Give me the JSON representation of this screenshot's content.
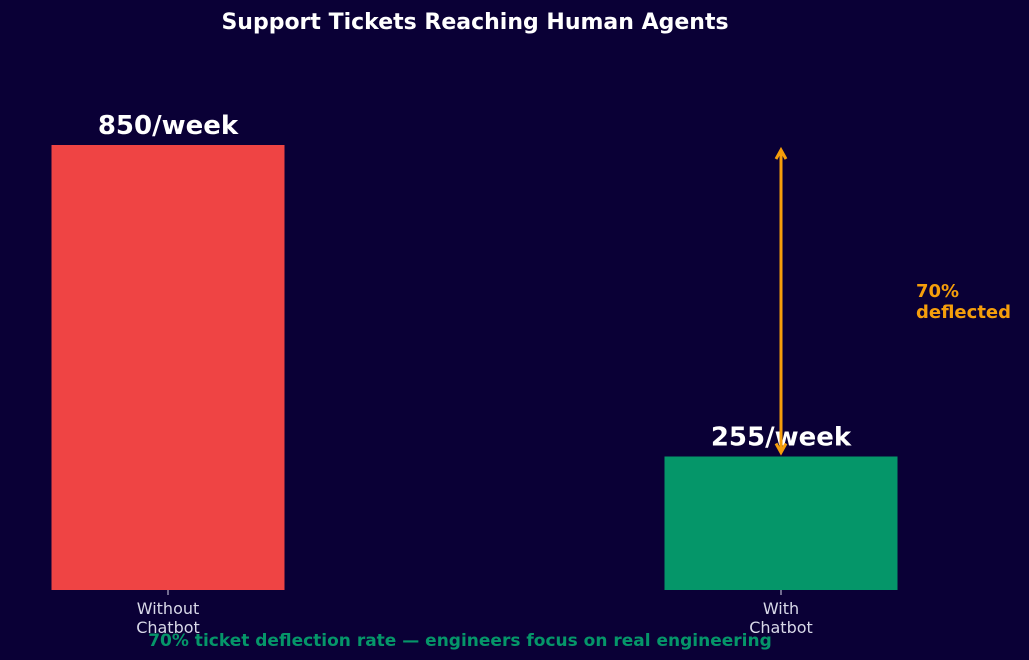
{
  "chart_data": {
    "type": "bar",
    "title": "Support Tickets Reaching Human Agents",
    "categories": [
      "Without\nChatbot",
      "With\nChatbot"
    ],
    "values": [
      850,
      255
    ],
    "value_labels": [
      "850/week",
      "255/week"
    ],
    "colors": [
      "#ef4444",
      "#059669"
    ],
    "ylim": [
      0,
      850
    ],
    "grid": false,
    "annotation": {
      "text_lines": [
        "70%",
        "deflected"
      ],
      "from_value": 255,
      "to_value": 850,
      "category_index": 1,
      "color": "#f59e0b"
    },
    "footer": "70% ticket deflection rate — engineers focus on real engineering"
  },
  "colors": {
    "background": "#0a0036",
    "title": "#ffffff",
    "footer": "#059669"
  }
}
